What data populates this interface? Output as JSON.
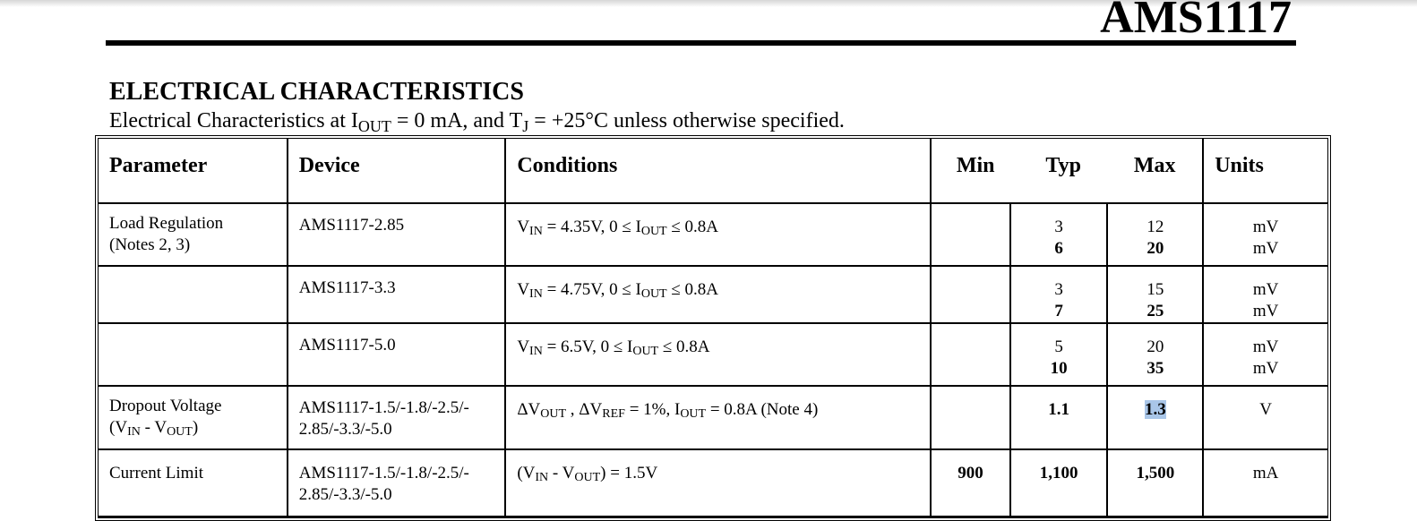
{
  "doc_title": "AMS1117",
  "section_title": "ELECTRICAL CHARACTERISTICS",
  "subtitle": {
    "pre": "Electrical Characteristics at I",
    "sub1": "OUT",
    "mid": " = 0 mA, and T",
    "sub2": "J",
    "post": " = +25°C unless otherwise specified."
  },
  "table": {
    "headers": {
      "parameter": "Parameter",
      "device": "Device",
      "conditions": "Conditions",
      "min": "Min",
      "typ": "Typ",
      "max": "Max",
      "units": "Units"
    },
    "rows": [
      {
        "param_line1": "Load Regulation",
        "param_line2": "(Notes 2, 3)",
        "device": "AMS1117-2.85",
        "cond": "V_IN = 4.35V, 0 ≤ I_OUT ≤ 0.8A",
        "min": "",
        "typ": [
          "3",
          "6"
        ],
        "max": [
          "12",
          "20"
        ],
        "units": [
          "mV",
          "mV"
        ]
      },
      {
        "param_line1": "",
        "param_line2": "",
        "device": "AMS1117-3.3",
        "cond": "V_IN = 4.75V, 0 ≤ I_OUT ≤ 0.8A",
        "min": "",
        "typ": [
          "3",
          "7"
        ],
        "max": [
          "15",
          "25"
        ],
        "units": [
          "mV",
          "mV"
        ]
      },
      {
        "param_line1": "",
        "param_line2": "",
        "device": "AMS1117-5.0",
        "cond": "V_IN = 6.5V, 0 ≤ I_OUT ≤ 0.8A",
        "min": "",
        "typ": [
          "5",
          "10"
        ],
        "max": [
          "20",
          "35"
        ],
        "units": [
          "mV",
          "mV"
        ]
      },
      {
        "param_line1": "Dropout Voltage",
        "param_line2": "(V_IN - V_OUT)",
        "device": "AMS1117-1.5/-1.8/-2.5/-2.85/-3.3/-5.0",
        "cond": "ΔV_OUT , ΔV_REF = 1%, I_OUT = 0.8A (Note 4)",
        "min": "",
        "typ": [
          "1.1"
        ],
        "max": [
          "1.3"
        ],
        "units": [
          "V"
        ]
      },
      {
        "param_line1": "Current Limit",
        "param_line2": "",
        "device": "AMS1117-1.5/-1.8/-2.5/-2.85/-3.3/-5.0",
        "cond": "(V_IN - V_OUT) = 1.5V",
        "min": "900",
        "typ": [
          "1,100"
        ],
        "max": [
          "1,500"
        ],
        "units": [
          "mA"
        ]
      }
    ]
  },
  "text_parts": {
    "v": "V",
    "i": "I",
    "in": "IN",
    "out": "OUT",
    "ref": "REF",
    "r1_cond_a": " = 4.35V, 0 ≤ ",
    "r1_cond_b": " ≤ 0.8A",
    "r2_cond_a": " = 4.75V, 0 ≤ ",
    "r2_cond_b": " ≤ 0.8A",
    "r3_cond_a": " = 6.5V, 0 ≤ ",
    "r3_cond_b": " ≤ 0.8A",
    "r4_dv": "ΔV",
    "r4_sep": " , ",
    "r4_eq": " = 1%,  ",
    "r4_tail": " = 0.8A (Note 4)",
    "r4_param_open": "(V",
    "r4_param_mid": " - V",
    "r4_param_close": ")",
    "r5_open": "(V",
    "r5_mid": " - V",
    "r5_tail": ") = 1.5V",
    "dev_line1": "AMS1117-1.5/-1.8/-2.5/-",
    "dev_line2": "2.85/-3.3/-5.0"
  },
  "selection": {
    "highlighted_cell": "1.3",
    "highlight_color": "#a9c6e8"
  }
}
